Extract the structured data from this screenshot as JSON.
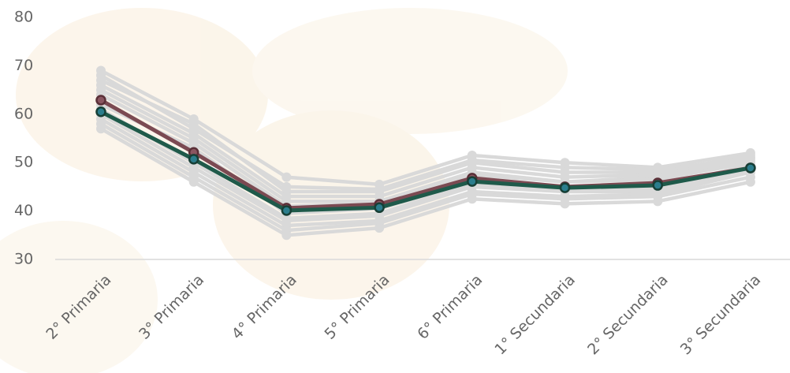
{
  "chart_data": {
    "type": "line",
    "categories": [
      "2° Primaria",
      "3° Primaria",
      "4° Primaria",
      "5° Primaria",
      "6° Primaria",
      "1° Secundaria",
      "2° Secundaria",
      "3° Secundaria"
    ],
    "ylim": [
      30,
      80
    ],
    "yticks": [
      30,
      40,
      50,
      60,
      70,
      80
    ],
    "series": [
      {
        "color": "#d9d9d9",
        "values": [
          69,
          59,
          47,
          45.5,
          51.5,
          50,
          49,
          52
        ]
      },
      {
        "color": "#d9d9d9",
        "values": [
          68,
          57,
          45,
          44.5,
          50.5,
          49,
          48.5,
          51
        ]
      },
      {
        "color": "#d9d9d9",
        "values": [
          67,
          58,
          44,
          44,
          50,
          48,
          48,
          51.5
        ]
      },
      {
        "color": "#d9d9d9",
        "values": [
          66,
          56,
          43,
          43,
          49,
          47,
          47.5,
          51
        ]
      },
      {
        "color": "#d9d9d9",
        "values": [
          65,
          55,
          42,
          42,
          48,
          46,
          47,
          50.5
        ]
      },
      {
        "color": "#d9d9d9",
        "values": [
          64,
          54,
          41,
          41.5,
          47.5,
          46,
          46.5,
          50
        ]
      },
      {
        "color": "#d9d9d9",
        "values": [
          62,
          53,
          39.5,
          40.5,
          46,
          45,
          45,
          49.5
        ]
      },
      {
        "color": "#d9d9d9",
        "values": [
          61,
          50,
          38.5,
          39.5,
          45.5,
          44.5,
          44.5,
          49
        ]
      },
      {
        "color": "#d9d9d9",
        "values": [
          60,
          49,
          38,
          39,
          45,
          44,
          44,
          48.5
        ]
      },
      {
        "color": "#d9d9d9",
        "values": [
          59,
          48,
          37,
          38,
          44,
          43,
          43.5,
          48
        ]
      },
      {
        "color": "#d9d9d9",
        "values": [
          58,
          47,
          36,
          37.5,
          43.5,
          42.5,
          43,
          47
        ]
      },
      {
        "color": "#d9d9d9",
        "values": [
          57,
          46,
          35,
          36.5,
          42.5,
          41.5,
          42,
          46
        ]
      },
      {
        "color": "#7b4a52",
        "values": [
          62.9,
          52.1,
          40.6,
          41.4,
          46.8,
          45,
          45.8,
          48.9
        ]
      },
      {
        "color": "#1f5a4a",
        "values": [
          60.5,
          50.7,
          40.1,
          40.7,
          46.1,
          44.8,
          45.3,
          48.9
        ]
      }
    ]
  }
}
